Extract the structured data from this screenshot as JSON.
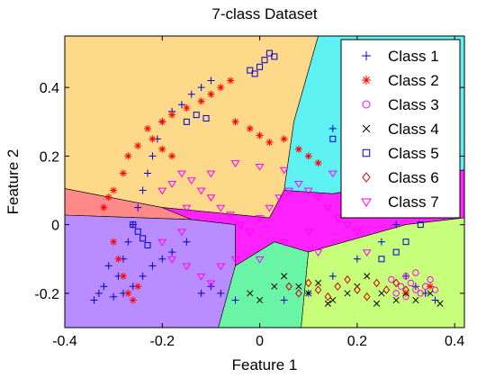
{
  "chart_data": {
    "type": "scatter",
    "title": "7-class Dataset",
    "xlabel": "Feature 1",
    "ylabel": "Feature 2",
    "xlim": [
      -0.4,
      0.42
    ],
    "ylim": [
      -0.3,
      0.55
    ],
    "xticks": [
      -0.4,
      -0.2,
      0,
      0.2,
      0.4
    ],
    "yticks": [
      -0.2,
      0,
      0.2,
      0.4
    ],
    "xtick_labels": [
      "-0.4",
      "-0.2",
      "0",
      "0.2",
      "0.4"
    ],
    "ytick_labels": [
      "-0.2",
      "0",
      "0.2",
      "0.4"
    ],
    "grid": false,
    "legend_position": "top-right",
    "regions": [
      {
        "color": "#ffd98a",
        "polygon": [
          [
            -0.4,
            0.55
          ],
          [
            0.12,
            0.55
          ],
          [
            0.07,
            0.3
          ],
          [
            0.05,
            0.1
          ],
          [
            0.02,
            0.02
          ],
          [
            -0.2,
            0.05
          ],
          [
            -0.4,
            0.105
          ]
        ]
      },
      {
        "color": "#5ef2f2",
        "polygon": [
          [
            0.12,
            0.55
          ],
          [
            0.42,
            0.55
          ],
          [
            0.42,
            0.16
          ],
          [
            0.15,
            0.09
          ],
          [
            0.05,
            0.1
          ],
          [
            0.07,
            0.3
          ]
        ]
      },
      {
        "color": "#ff8888",
        "polygon": [
          [
            -0.4,
            0.105
          ],
          [
            -0.2,
            0.05
          ],
          [
            -0.14,
            0.015
          ],
          [
            -0.4,
            0.028
          ]
        ]
      },
      {
        "color": "#b98cff",
        "polygon": [
          [
            -0.4,
            0.028
          ],
          [
            -0.14,
            0.015
          ],
          [
            -0.05,
            0.0
          ],
          [
            -0.05,
            -0.12
          ],
          [
            -0.085,
            -0.3
          ],
          [
            -0.4,
            -0.3
          ]
        ]
      },
      {
        "color": "#ff22ff",
        "polygon": [
          [
            -0.14,
            0.015
          ],
          [
            -0.2,
            0.05
          ],
          [
            0.02,
            0.02
          ],
          [
            0.05,
            0.1
          ],
          [
            0.15,
            0.09
          ],
          [
            0.42,
            0.16
          ],
          [
            0.42,
            0.02
          ],
          [
            0.3,
            0.0
          ],
          [
            0.1,
            -0.08
          ],
          [
            0.03,
            -0.05
          ],
          [
            -0.05,
            -0.12
          ],
          [
            -0.05,
            0.0
          ]
        ]
      },
      {
        "color": "#6af5a6",
        "polygon": [
          [
            -0.05,
            -0.12
          ],
          [
            0.03,
            -0.05
          ],
          [
            0.1,
            -0.08
          ],
          [
            0.085,
            -0.3
          ],
          [
            -0.085,
            -0.3
          ]
        ]
      },
      {
        "color": "#c8ff7a",
        "polygon": [
          [
            0.1,
            -0.08
          ],
          [
            0.3,
            0.0
          ],
          [
            0.42,
            0.02
          ],
          [
            0.42,
            -0.3
          ],
          [
            0.085,
            -0.3
          ]
        ]
      }
    ],
    "series": [
      {
        "name": "Class 1",
        "marker": "plus",
        "color": "#0000cc",
        "points": [
          [
            -0.33,
            -0.2
          ],
          [
            -0.32,
            -0.18
          ],
          [
            -0.3,
            -0.21
          ],
          [
            -0.29,
            -0.15
          ],
          [
            -0.28,
            -0.1
          ],
          [
            -0.27,
            -0.05
          ],
          [
            -0.26,
            0.0
          ],
          [
            -0.25,
            0.05
          ],
          [
            -0.24,
            0.1
          ],
          [
            -0.23,
            0.15
          ],
          [
            -0.22,
            0.2
          ],
          [
            -0.21,
            0.25
          ],
          [
            -0.2,
            0.3
          ],
          [
            -0.18,
            0.33
          ],
          [
            -0.16,
            0.35
          ],
          [
            -0.14,
            0.38
          ],
          [
            -0.12,
            0.4
          ],
          [
            -0.1,
            0.42
          ],
          [
            -0.28,
            -0.2
          ],
          [
            -0.26,
            -0.18
          ],
          [
            -0.24,
            -0.15
          ],
          [
            -0.22,
            -0.12
          ],
          [
            -0.2,
            -0.1
          ],
          [
            -0.18,
            -0.08
          ],
          [
            -0.15,
            -0.05
          ],
          [
            -0.12,
            -0.2
          ],
          [
            -0.1,
            -0.18
          ],
          [
            -0.08,
            -0.2
          ],
          [
            -0.05,
            -0.22
          ],
          [
            0.05,
            -0.22
          ],
          [
            0.1,
            -0.2
          ],
          [
            0.15,
            -0.15
          ],
          [
            0.2,
            -0.1
          ],
          [
            0.25,
            -0.05
          ],
          [
            0.28,
            0.0
          ],
          [
            0.3,
            0.05
          ],
          [
            0.32,
            0.1
          ],
          [
            0.33,
            0.12
          ],
          [
            0.25,
            0.2
          ],
          [
            0.22,
            0.22
          ],
          [
            0.18,
            0.25
          ],
          [
            0.15,
            0.28
          ],
          [
            0.3,
            -0.15
          ],
          [
            0.32,
            -0.18
          ],
          [
            0.34,
            -0.2
          ],
          [
            0.36,
            -0.22
          ],
          [
            -0.34,
            -0.22
          ],
          [
            -0.31,
            -0.12
          ]
        ]
      },
      {
        "name": "Class 2",
        "marker": "star",
        "color": "#ff0000",
        "points": [
          [
            -0.3,
            0.1
          ],
          [
            -0.28,
            0.15
          ],
          [
            -0.27,
            0.2
          ],
          [
            -0.25,
            0.23
          ],
          [
            -0.23,
            0.28
          ],
          [
            -0.2,
            0.3
          ],
          [
            -0.18,
            0.32
          ],
          [
            -0.15,
            0.34
          ],
          [
            -0.12,
            0.36
          ],
          [
            -0.1,
            0.38
          ],
          [
            -0.08,
            0.4
          ],
          [
            -0.06,
            0.42
          ],
          [
            -0.05,
            0.3
          ],
          [
            -0.02,
            0.28
          ],
          [
            0.0,
            0.26
          ],
          [
            0.02,
            0.24
          ],
          [
            0.05,
            0.25
          ],
          [
            0.08,
            0.22
          ],
          [
            0.1,
            0.2
          ],
          [
            0.12,
            0.18
          ],
          [
            -0.3,
            -0.05
          ],
          [
            -0.29,
            -0.1
          ],
          [
            -0.28,
            -0.15
          ],
          [
            -0.27,
            -0.2
          ],
          [
            -0.26,
            -0.22
          ],
          [
            -0.25,
            -0.18
          ],
          [
            -0.32,
            0.05
          ],
          [
            -0.31,
            0.08
          ],
          [
            0.3,
            -0.2
          ],
          [
            0.35,
            -0.18
          ],
          [
            -0.22,
            0.25
          ],
          [
            -0.2,
            0.22
          ],
          [
            -0.18,
            0.2
          ]
        ]
      },
      {
        "name": "Class 3",
        "marker": "circle",
        "color": "#ff00ff",
        "points": [
          [
            0.3,
            -0.15
          ],
          [
            0.31,
            -0.17
          ],
          [
            0.32,
            -0.19
          ],
          [
            0.33,
            -0.2
          ],
          [
            0.34,
            -0.18
          ],
          [
            0.35,
            -0.16
          ],
          [
            0.36,
            -0.19
          ],
          [
            0.29,
            -0.18
          ],
          [
            0.28,
            -0.2
          ],
          [
            0.3,
            -0.21
          ],
          [
            0.32,
            -0.14
          ],
          [
            0.27,
            -0.16
          ]
        ]
      },
      {
        "name": "Class 4",
        "marker": "x",
        "color": "#000000",
        "points": [
          [
            0.05,
            -0.15
          ],
          [
            0.08,
            -0.18
          ],
          [
            0.1,
            -0.2
          ],
          [
            0.12,
            -0.17
          ],
          [
            0.15,
            -0.22
          ],
          [
            0.18,
            -0.2
          ],
          [
            0.2,
            -0.18
          ],
          [
            0.22,
            -0.15
          ],
          [
            0.25,
            -0.2
          ],
          [
            0.28,
            -0.22
          ],
          [
            0.3,
            -0.2
          ],
          [
            0.32,
            -0.22
          ],
          [
            0.35,
            -0.2
          ],
          [
            0.37,
            -0.23
          ],
          [
            -0.02,
            -0.2
          ],
          [
            0.0,
            -0.22
          ],
          [
            0.03,
            -0.18
          ],
          [
            0.14,
            -0.23
          ],
          [
            0.24,
            -0.23
          ]
        ]
      },
      {
        "name": "Class 5",
        "marker": "square",
        "color": "#0000cc",
        "points": [
          [
            -0.02,
            0.45
          ],
          [
            0.0,
            0.46
          ],
          [
            0.01,
            0.48
          ],
          [
            0.02,
            0.5
          ],
          [
            0.03,
            0.49
          ],
          [
            -0.01,
            0.44
          ],
          [
            -0.15,
            0.3
          ],
          [
            -0.13,
            0.32
          ],
          [
            -0.11,
            0.31
          ],
          [
            0.15,
            0.25
          ],
          [
            0.2,
            0.22
          ],
          [
            0.25,
            0.2
          ],
          [
            0.28,
            0.15
          ],
          [
            0.3,
            0.1
          ],
          [
            0.32,
            0.05
          ],
          [
            0.33,
            0.0
          ],
          [
            0.3,
            -0.05
          ],
          [
            0.28,
            -0.08
          ],
          [
            0.25,
            -0.1
          ],
          [
            -0.26,
            0.0
          ],
          [
            -0.25,
            -0.02
          ],
          [
            -0.24,
            -0.04
          ],
          [
            -0.23,
            -0.06
          ]
        ]
      },
      {
        "name": "Class 6",
        "marker": "diamond",
        "color": "#cc0000",
        "points": [
          [
            0.1,
            -0.17
          ],
          [
            0.12,
            -0.19
          ],
          [
            0.14,
            -0.21
          ],
          [
            0.16,
            -0.18
          ],
          [
            0.18,
            -0.16
          ],
          [
            0.2,
            -0.19
          ],
          [
            0.22,
            -0.21
          ],
          [
            0.24,
            -0.17
          ],
          [
            0.26,
            -0.19
          ],
          [
            0.28,
            -0.17
          ],
          [
            0.08,
            -0.2
          ],
          [
            0.06,
            -0.18
          ],
          [
            0.3,
            -0.19
          ]
        ]
      },
      {
        "name": "Class 7",
        "marker": "triangle",
        "color": "#ff00ff",
        "points": [
          [
            -0.2,
            0.1
          ],
          [
            -0.18,
            0.12
          ],
          [
            -0.16,
            0.15
          ],
          [
            -0.14,
            0.13
          ],
          [
            -0.12,
            0.1
          ],
          [
            -0.1,
            0.08
          ],
          [
            -0.08,
            0.05
          ],
          [
            -0.06,
            0.03
          ],
          [
            -0.04,
            0.0
          ],
          [
            -0.02,
            -0.02
          ],
          [
            0.0,
            0.02
          ],
          [
            0.02,
            0.05
          ],
          [
            0.04,
            0.08
          ],
          [
            0.06,
            0.1
          ],
          [
            0.08,
            0.12
          ],
          [
            0.1,
            0.1
          ],
          [
            0.12,
            0.08
          ],
          [
            0.14,
            0.05
          ],
          [
            0.16,
            0.02
          ],
          [
            0.18,
            0.0
          ],
          [
            0.2,
            -0.02
          ],
          [
            0.22,
            0.05
          ],
          [
            0.24,
            0.08
          ],
          [
            -0.18,
            -0.1
          ],
          [
            -0.15,
            -0.12
          ],
          [
            -0.12,
            -0.15
          ],
          [
            -0.1,
            -0.17
          ],
          [
            -0.08,
            -0.12
          ],
          [
            -0.05,
            -0.1
          ],
          [
            0.0,
            -0.1
          ],
          [
            0.05,
            -0.05
          ],
          [
            0.1,
            -0.02
          ],
          [
            0.15,
            0.15
          ],
          [
            -0.15,
            0.05
          ],
          [
            -0.1,
            0.15
          ],
          [
            -0.05,
            0.18
          ],
          [
            0.0,
            0.17
          ],
          [
            0.05,
            0.16
          ],
          [
            -0.2,
            -0.05
          ],
          [
            -0.16,
            -0.02
          ],
          [
            0.25,
            0.1
          ],
          [
            0.28,
            0.12
          ],
          [
            0.22,
            -0.08
          ],
          [
            0.12,
            -0.08
          ]
        ]
      }
    ]
  }
}
